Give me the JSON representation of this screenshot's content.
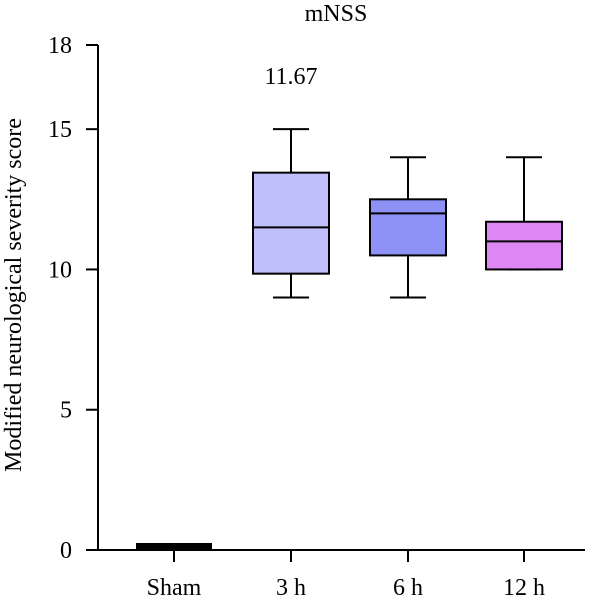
{
  "chart_data": {
    "type": "box",
    "title": "mNSS",
    "ylabel": "Modified neurological severity score",
    "xlabel": "",
    "ylim": [
      0,
      18
    ],
    "yticks": [
      0,
      5,
      10,
      15,
      18
    ],
    "categories": [
      "Sham",
      "3 h",
      "6 h",
      "12 h"
    ],
    "boxes": [
      {
        "category": "Sham",
        "min": 0,
        "q1": 0,
        "median": 0,
        "q3": 0.25,
        "max": 0.25,
        "color": "#000000"
      },
      {
        "category": "3 h",
        "min": 9,
        "q1": 9.85,
        "median": 11.5,
        "q3": 13.45,
        "max": 15,
        "color": "#bfc0fb"
      },
      {
        "category": "6 h",
        "min": 9,
        "q1": 10.5,
        "median": 12,
        "q3": 12.5,
        "max": 14,
        "color": "#8e91f6"
      },
      {
        "category": "12 h",
        "min": 10,
        "q1": 10,
        "median": 11,
        "q3": 11.7,
        "max": 14,
        "color": "#de86f4"
      }
    ],
    "annotations": [
      {
        "text": "11.67",
        "category": "3 h",
        "y": 16.9
      }
    ],
    "grid": false,
    "legend": "none"
  }
}
